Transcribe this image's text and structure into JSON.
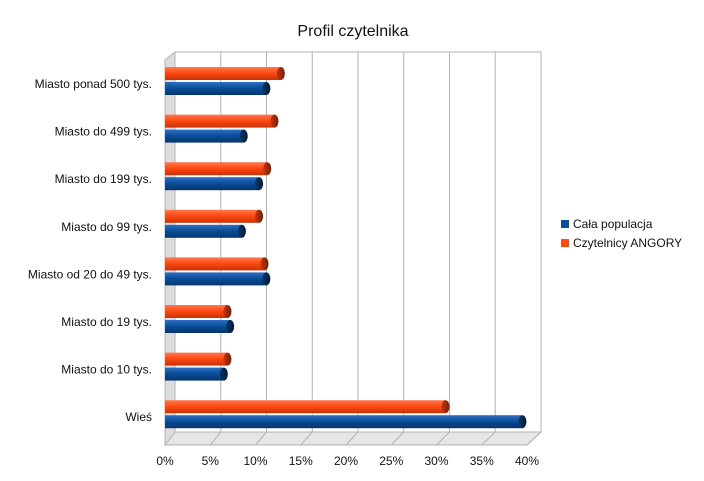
{
  "chart_data": {
    "type": "bar",
    "orientation": "horizontal",
    "title": "Profil czytelnika",
    "xlabel": "",
    "ylabel": "",
    "categories": [
      "Miasto ponad 500 tys.",
      "Miasto do 499 tys.",
      "Miasto do 199 tys.",
      "Miasto do 99 tys.",
      "Miasto od 20 do 49 tys.",
      "Miasto do 19 tys.",
      "Miasto do 10 tys.",
      "Wieś"
    ],
    "series": [
      {
        "name": "Cała populacja",
        "color": "#0a4f9c",
        "values": [
          11.2,
          8.7,
          10.4,
          8.5,
          11.2,
          7.2,
          6.5,
          39.5
        ]
      },
      {
        "name": "Czytelnicy ANGORY",
        "color": "#ff4a12",
        "values": [
          12.8,
          12.1,
          11.3,
          10.4,
          11.0,
          6.9,
          6.9,
          31.0
        ]
      }
    ],
    "xlim": [
      0,
      40
    ],
    "xticks": [
      0,
      5,
      10,
      15,
      20,
      25,
      30,
      35,
      40
    ],
    "xtick_labels": [
      "0%",
      "5%",
      "10%",
      "15%",
      "20%",
      "25%",
      "30%",
      "35%",
      "40%"
    ],
    "grid": true,
    "legend_position": "right"
  }
}
